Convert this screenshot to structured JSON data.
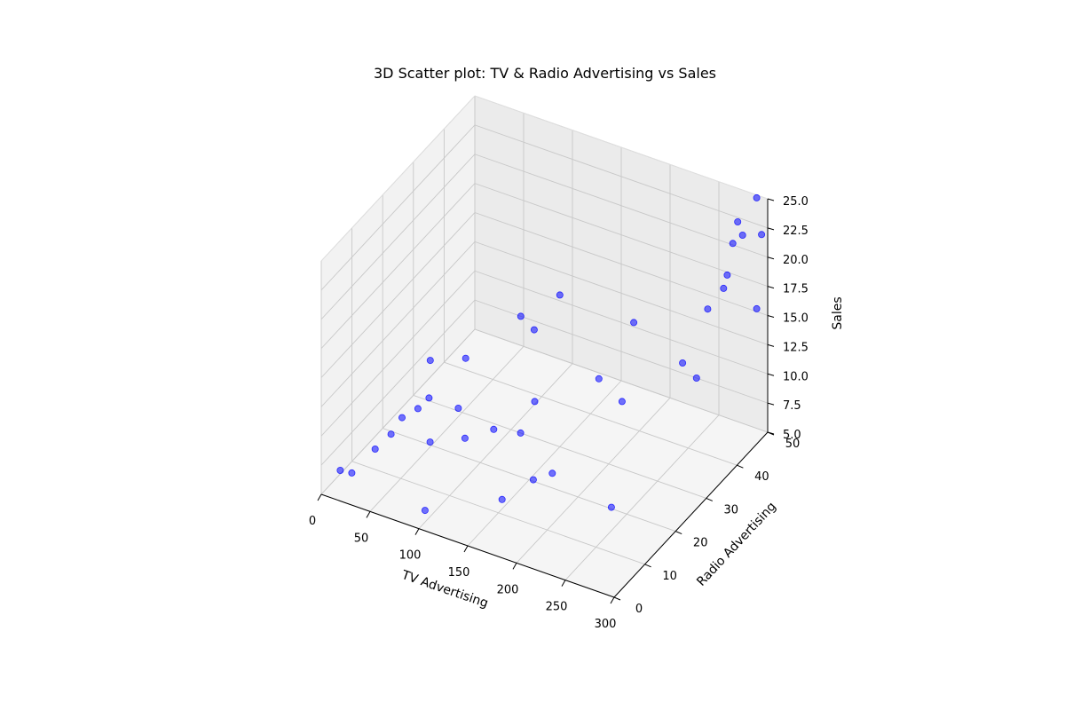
{
  "chart_data": {
    "type": "scatter",
    "title": "3D Scatter plot: TV & Radio Advertising vs Sales",
    "xlabel": "TV Advertising",
    "ylabel": "Radio Advertising",
    "zlabel": "Sales",
    "xlim": [
      0,
      300
    ],
    "ylim": [
      0,
      50
    ],
    "zlim": [
      5,
      25
    ],
    "xticks": [
      "0",
      "50",
      "100",
      "150",
      "200",
      "250",
      "300"
    ],
    "yticks": [
      "0",
      "10",
      "20",
      "30",
      "40",
      "50"
    ],
    "zticks": [
      "5.0",
      "7.5",
      "10.0",
      "12.5",
      "15.0",
      "17.5",
      "20.0",
      "22.5",
      "25.0"
    ],
    "grid": true,
    "marker_color": "#0000ff",
    "points": [
      {
        "x": 10,
        "y": 3,
        "z": 6.5
      },
      {
        "x": 25,
        "y": 2,
        "z": 7.0
      },
      {
        "x": 30,
        "y": 8,
        "z": 7.5
      },
      {
        "x": 40,
        "y": 10,
        "z": 8.5
      },
      {
        "x": 45,
        "y": 12,
        "z": 9.5
      },
      {
        "x": 55,
        "y": 14,
        "z": 10.0
      },
      {
        "x": 60,
        "y": 16,
        "z": 10.5
      },
      {
        "x": 55,
        "y": 18,
        "z": 13.0
      },
      {
        "x": 80,
        "y": 10,
        "z": 9.0
      },
      {
        "x": 90,
        "y": 16,
        "z": 10.5
      },
      {
        "x": 85,
        "y": 20,
        "z": 13.5
      },
      {
        "x": 100,
        "y": 2,
        "z": 6.0
      },
      {
        "x": 100,
        "y": 15,
        "z": 8.5
      },
      {
        "x": 120,
        "y": 18,
        "z": 9.0
      },
      {
        "x": 110,
        "y": 30,
        "z": 15.0
      },
      {
        "x": 130,
        "y": 28,
        "z": 15.0
      },
      {
        "x": 140,
        "y": 25,
        "z": 10.0
      },
      {
        "x": 150,
        "y": 30,
        "z": 18.0
      },
      {
        "x": 135,
        "y": 22,
        "z": 8.0
      },
      {
        "x": 160,
        "y": 8,
        "z": 7.0
      },
      {
        "x": 170,
        "y": 15,
        "z": 7.0
      },
      {
        "x": 180,
        "y": 18,
        "z": 7.0
      },
      {
        "x": 190,
        "y": 30,
        "z": 12.0
      },
      {
        "x": 210,
        "y": 35,
        "z": 16.0
      },
      {
        "x": 220,
        "y": 28,
        "z": 11.5
      },
      {
        "x": 250,
        "y": 15,
        "z": 7.0
      },
      {
        "x": 260,
        "y": 35,
        "z": 14.0
      },
      {
        "x": 270,
        "y": 40,
        "z": 17.5
      },
      {
        "x": 280,
        "y": 42,
        "z": 19.0
      },
      {
        "x": 290,
        "y": 40,
        "z": 21.0
      },
      {
        "x": 295,
        "y": 48,
        "z": 16.0
      },
      {
        "x": 290,
        "y": 30,
        "z": 15.0
      },
      {
        "x": 280,
        "y": 45,
        "z": 22.0
      },
      {
        "x": 290,
        "y": 45,
        "z": 23.0
      },
      {
        "x": 285,
        "y": 45,
        "z": 24.0
      },
      {
        "x": 295,
        "y": 48,
        "z": 25.5
      },
      {
        "x": 300,
        "y": 48,
        "z": 22.5
      }
    ]
  }
}
